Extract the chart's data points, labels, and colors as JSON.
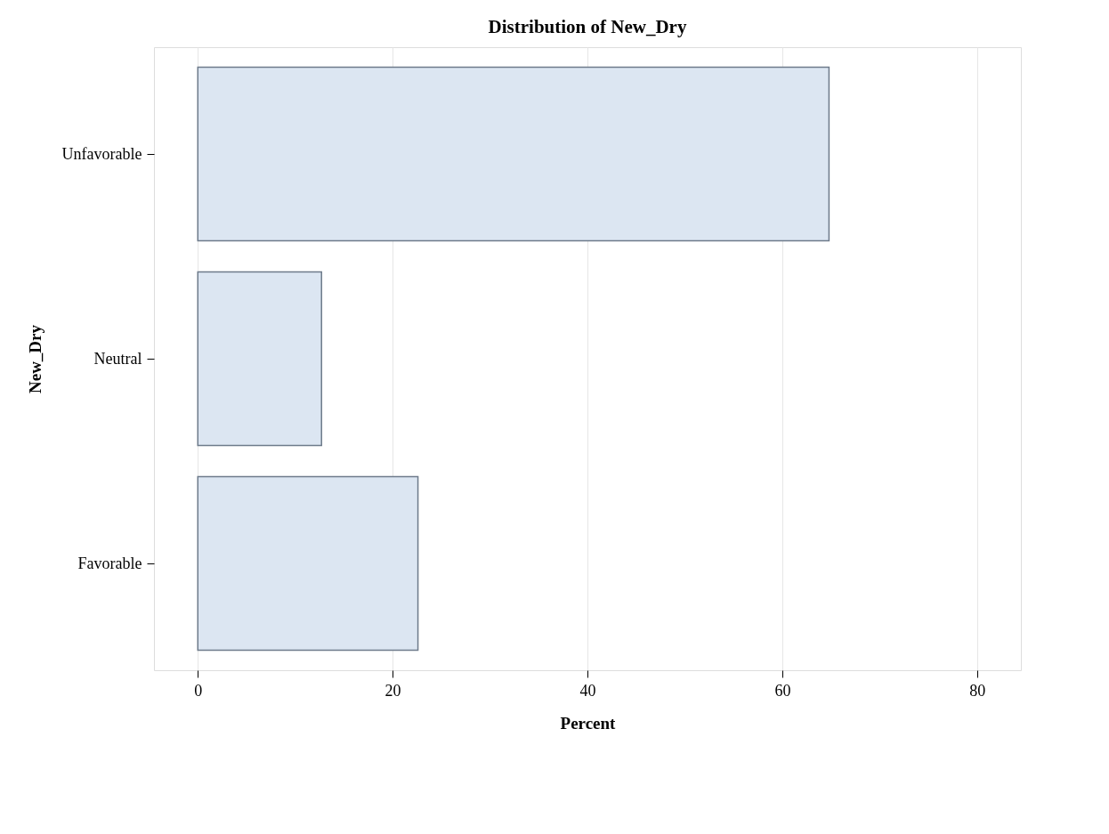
{
  "chart_data": {
    "type": "bar",
    "orientation": "horizontal",
    "title": "Distribution of New_Dry",
    "xlabel": "Percent",
    "ylabel": "New_Dry",
    "categories": [
      "Unfavorable",
      "Neutral",
      "Favorable"
    ],
    "values": [
      64.8,
      12.7,
      22.6
    ],
    "color": "#dce6f2",
    "xlim": [
      -4.5,
      84.5
    ],
    "xticks": [
      0,
      20,
      40,
      60,
      80
    ],
    "grid": "x"
  }
}
